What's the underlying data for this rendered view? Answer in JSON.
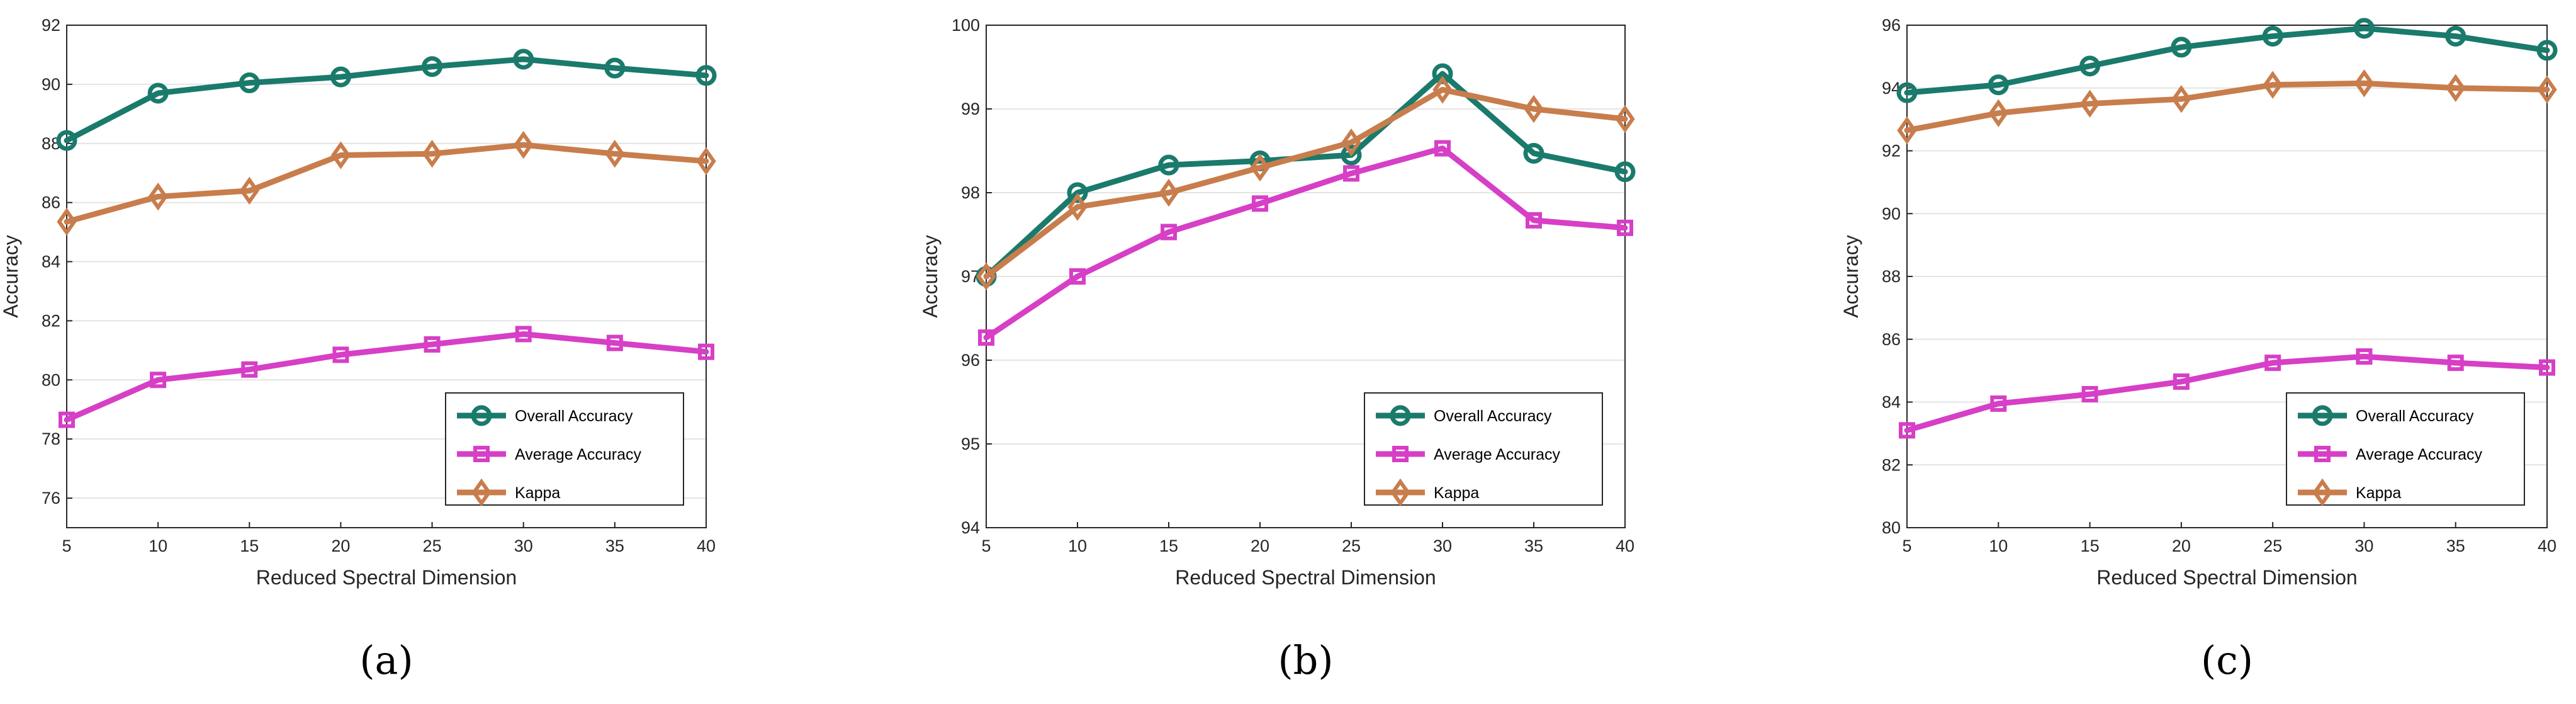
{
  "chart_data": [
    {
      "type": "line",
      "panel_label": "(a)",
      "xlabel": "Reduced Spectral Dimension",
      "ylabel": "Accuracy",
      "x": [
        5,
        10,
        15,
        20,
        25,
        30,
        35,
        40
      ],
      "xlim": [
        5,
        40
      ],
      "ylim": [
        75,
        92
      ],
      "yticks": [
        76,
        78,
        80,
        82,
        84,
        86,
        88,
        90,
        92
      ],
      "grid": "horizontal",
      "legend_position": "bottom-right",
      "series": [
        {
          "name": "Overall Accuracy",
          "values": [
            88.1,
            89.7,
            90.05,
            90.25,
            90.6,
            90.85,
            90.55,
            90.3
          ]
        },
        {
          "name": "Average Accuracy",
          "values": [
            78.65,
            80.0,
            80.35,
            80.85,
            81.2,
            81.55,
            81.25,
            80.95
          ]
        },
        {
          "name": "Kappa",
          "values": [
            85.35,
            86.2,
            86.4,
            87.6,
            87.65,
            87.95,
            87.65,
            87.4
          ]
        }
      ]
    },
    {
      "type": "line",
      "panel_label": "(b)",
      "xlabel": "Reduced Spectral Dimension",
      "ylabel": "Accuracy",
      "x": [
        5,
        10,
        15,
        20,
        25,
        30,
        35,
        40
      ],
      "xlim": [
        5,
        40
      ],
      "ylim": [
        94,
        100
      ],
      "yticks": [
        94,
        95,
        96,
        97,
        98,
        99,
        100
      ],
      "grid": "horizontal",
      "legend_position": "bottom-right",
      "series": [
        {
          "name": "Overall Accuracy",
          "values": [
            97.0,
            98.0,
            98.33,
            98.38,
            98.45,
            99.42,
            98.47,
            98.25
          ]
        },
        {
          "name": "Average Accuracy",
          "values": [
            96.27,
            97.0,
            97.53,
            97.87,
            98.23,
            98.53,
            97.67,
            97.58
          ]
        },
        {
          "name": "Kappa",
          "values": [
            97.0,
            97.83,
            98.0,
            98.3,
            98.6,
            99.23,
            99.0,
            98.88
          ]
        }
      ]
    },
    {
      "type": "line",
      "panel_label": "(c)",
      "xlabel": "Reduced Spectral Dimension",
      "ylabel": "Accuracy",
      "x": [
        5,
        10,
        15,
        20,
        25,
        30,
        35,
        40
      ],
      "xlim": [
        5,
        40
      ],
      "ylim": [
        80,
        96
      ],
      "yticks": [
        80,
        82,
        84,
        86,
        88,
        90,
        92,
        94,
        96
      ],
      "grid": "horizontal",
      "legend_position": "bottom-right",
      "series": [
        {
          "name": "Overall Accuracy",
          "values": [
            93.85,
            94.1,
            94.7,
            95.3,
            95.65,
            95.9,
            95.65,
            95.2
          ]
        },
        {
          "name": "Average Accuracy",
          "values": [
            83.1,
            83.95,
            84.25,
            84.65,
            85.25,
            85.45,
            85.25,
            85.1
          ]
        },
        {
          "name": "Kappa",
          "values": [
            92.65,
            93.2,
            93.5,
            93.65,
            94.1,
            94.15,
            94.0,
            93.95
          ]
        }
      ]
    }
  ],
  "colors": {
    "Overall Accuracy": "#1a7a6c",
    "Average Accuracy": "#d63fc6",
    "Kappa": "#c87d4c"
  },
  "markers": {
    "Overall Accuracy": "circle",
    "Average Accuracy": "square",
    "Kappa": "diamond"
  }
}
